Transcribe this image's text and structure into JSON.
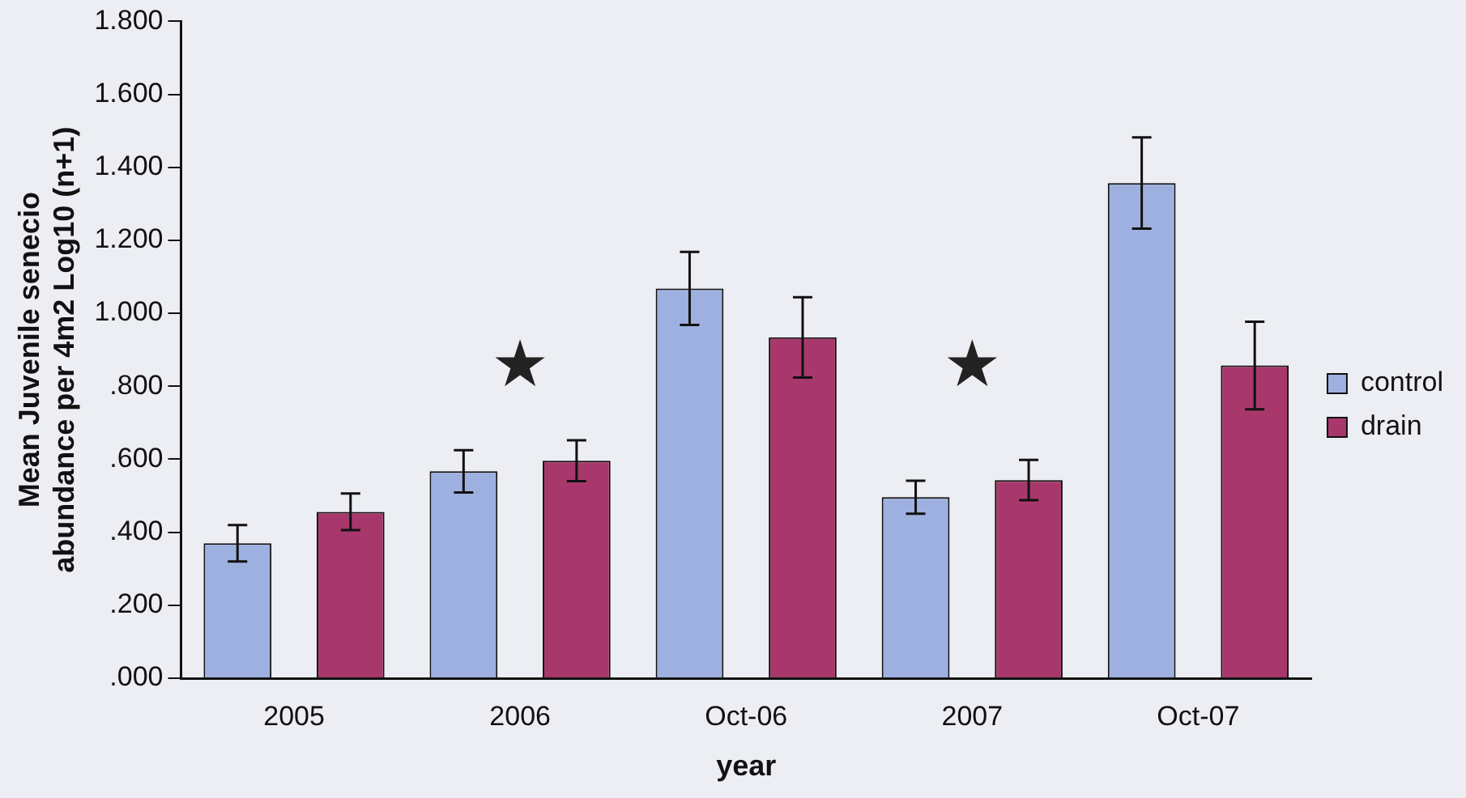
{
  "chart_data": {
    "type": "bar",
    "xlabel": "year",
    "ylabel": "Mean Juvenile senecio abundance per 4m2 Log10 (n+1)",
    "categories": [
      "2005",
      "2006",
      "Oct-06",
      "2007",
      "Oct-07"
    ],
    "series": [
      {
        "name": "control",
        "color": "#9db0e0",
        "values": [
          0.37,
          0.567,
          1.068,
          0.496,
          1.357
        ],
        "errors": [
          0.05,
          0.058,
          0.1,
          0.045,
          0.125
        ]
      },
      {
        "name": "drain",
        "color": "#a8386c",
        "values": [
          0.456,
          0.596,
          0.934,
          0.543,
          0.857
        ],
        "errors": [
          0.05,
          0.056,
          0.11,
          0.055,
          0.12
        ]
      }
    ],
    "ylim": [
      0,
      1.8
    ],
    "yticks": [
      {
        "value": 0,
        "label": ".000"
      },
      {
        "value": 0.2,
        "label": ".200"
      },
      {
        "value": 0.4,
        "label": ".400"
      },
      {
        "value": 0.6,
        "label": ".600"
      },
      {
        "value": 0.8,
        "label": ".800"
      },
      {
        "value": 1,
        "label": "1.000"
      },
      {
        "value": 1.2,
        "label": "1.200"
      },
      {
        "value": 1.4,
        "label": "1.400"
      },
      {
        "value": 1.6,
        "label": "1.600"
      },
      {
        "value": 1.8,
        "label": "1.800"
      }
    ],
    "annotations": [
      "★",
      "★"
    ],
    "grid": false,
    "legend": "right"
  }
}
